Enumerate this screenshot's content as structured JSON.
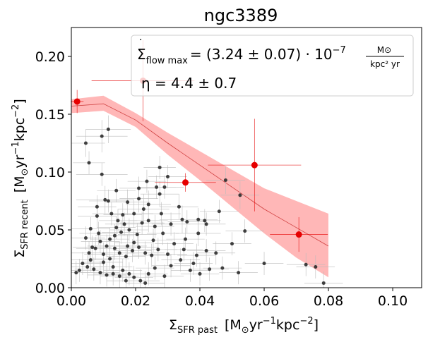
{
  "chart_data": {
    "type": "scatter",
    "title": "ngc3389",
    "xlabel": {
      "main": "Σ",
      "sub": "SFR past",
      "unit": "[M",
      "unit_sub": "⊙",
      "unit_rest": "yr",
      "exp1": "−1",
      "kpc": "kpc",
      "exp2": "−2",
      "close": "]"
    },
    "ylabel": {
      "main": "Σ",
      "sub": "SFR recent",
      "unit": "[M",
      "unit_sub": "⊙",
      "unit_rest": "yr",
      "exp1": "−1",
      "kpc": "kpc",
      "exp2": "−2",
      "close": "]"
    },
    "xlim": [
      0.0,
      0.109
    ],
    "ylim": [
      0.0,
      0.225
    ],
    "xticks": [
      "0.00",
      "0.02",
      "0.04",
      "0.06",
      "0.08",
      "0.10"
    ],
    "xtick_values": [
      0.0,
      0.02,
      0.04,
      0.06,
      0.08,
      0.1
    ],
    "yticks": [
      "0.00",
      "0.05",
      "0.10",
      "0.15",
      "0.20"
    ],
    "ytick_values": [
      0.0,
      0.05,
      0.1,
      0.15,
      0.2
    ],
    "annotations": {
      "flow_lhs": "Σ",
      "flow_dot": "·",
      "flow_sub": "flow max",
      "flow_rhs": "= (3.24 ± 0.07) · 10",
      "flow_exp": "−7",
      "frac_num": "M⊙",
      "frac_den": "kpc² yr",
      "eta": "η = 4.4 ± 0.7"
    },
    "colors": {
      "binned": "#e60000",
      "band": "#ffb3b3",
      "model_line": "#d04040",
      "points": "#222222",
      "errbars": "#bbbbbb"
    },
    "model": {
      "x": [
        0.0,
        0.01,
        0.02,
        0.03,
        0.04,
        0.05,
        0.06,
        0.07,
        0.08
      ],
      "y": [
        0.157,
        0.159,
        0.145,
        0.125,
        0.106,
        0.087,
        0.068,
        0.052,
        0.036
      ],
      "lower": [
        0.151,
        0.153,
        0.139,
        0.115,
        0.093,
        0.07,
        0.047,
        0.026,
        0.009
      ],
      "upper": [
        0.163,
        0.166,
        0.151,
        0.134,
        0.118,
        0.102,
        0.086,
        0.075,
        0.064
      ]
    },
    "binned": [
      {
        "x": 0.0018,
        "y": 0.161,
        "xerr": 0.002,
        "yerr": 0.01
      },
      {
        "x": 0.0223,
        "y": 0.179,
        "xerr": 0.016,
        "yerr": 0.035
      },
      {
        "x": 0.0355,
        "y": 0.091,
        "xerr": 0.0095,
        "yerr": 0.008
      },
      {
        "x": 0.057,
        "y": 0.106,
        "xerr": 0.0145,
        "yerr": 0.04
      },
      {
        "x": 0.0708,
        "y": 0.046,
        "xerr": 0.009,
        "yerr": 0.015
      }
    ],
    "points": [
      [
        0.0045,
        0.125,
        0.006,
        0.012
      ],
      [
        0.0055,
        0.108,
        0.005,
        0.01
      ],
      [
        0.0095,
        0.131,
        0.008,
        0.014
      ],
      [
        0.0115,
        0.137,
        0.007,
        0.012
      ],
      [
        0.0095,
        0.098,
        0.008,
        0.01
      ],
      [
        0.0105,
        0.076,
        0.009,
        0.012
      ],
      [
        0.014,
        0.084,
        0.006,
        0.01
      ],
      [
        0.0175,
        0.074,
        0.007,
        0.011
      ],
      [
        0.0145,
        0.058,
        0.006,
        0.01
      ],
      [
        0.008,
        0.07,
        0.006,
        0.01
      ],
      [
        0.021,
        0.077,
        0.006,
        0.012
      ],
      [
        0.0195,
        0.064,
        0.006,
        0.012
      ],
      [
        0.0225,
        0.068,
        0.008,
        0.013
      ],
      [
        0.024,
        0.072,
        0.007,
        0.012
      ],
      [
        0.0275,
        0.081,
        0.006,
        0.011
      ],
      [
        0.029,
        0.087,
        0.006,
        0.01
      ],
      [
        0.03,
        0.096,
        0.006,
        0.01
      ],
      [
        0.0275,
        0.104,
        0.005,
        0.01
      ],
      [
        0.0345,
        0.059,
        0.007,
        0.012
      ],
      [
        0.036,
        0.057,
        0.006,
        0.01
      ],
      [
        0.0335,
        0.07,
        0.006,
        0.011
      ],
      [
        0.0395,
        0.059,
        0.006,
        0.01
      ],
      [
        0.0415,
        0.058,
        0.005,
        0.01
      ],
      [
        0.042,
        0.055,
        0.006,
        0.01
      ],
      [
        0.0395,
        0.047,
        0.007,
        0.011
      ],
      [
        0.0355,
        0.042,
        0.006,
        0.01
      ],
      [
        0.032,
        0.038,
        0.006,
        0.01
      ],
      [
        0.0285,
        0.047,
        0.005,
        0.01
      ],
      [
        0.026,
        0.053,
        0.006,
        0.01
      ],
      [
        0.024,
        0.058,
        0.006,
        0.01
      ],
      [
        0.022,
        0.056,
        0.007,
        0.01
      ],
      [
        0.0205,
        0.046,
        0.006,
        0.01
      ],
      [
        0.018,
        0.05,
        0.006,
        0.01
      ],
      [
        0.0165,
        0.055,
        0.006,
        0.01
      ],
      [
        0.0155,
        0.048,
        0.006,
        0.01
      ],
      [
        0.014,
        0.052,
        0.006,
        0.01
      ],
      [
        0.0135,
        0.045,
        0.006,
        0.01
      ],
      [
        0.012,
        0.042,
        0.006,
        0.01
      ],
      [
        0.011,
        0.036,
        0.006,
        0.01
      ],
      [
        0.009,
        0.04,
        0.006,
        0.01
      ],
      [
        0.0075,
        0.034,
        0.006,
        0.01
      ],
      [
        0.0055,
        0.03,
        0.006,
        0.01
      ],
      [
        0.0045,
        0.043,
        0.006,
        0.01
      ],
      [
        0.006,
        0.051,
        0.006,
        0.01
      ],
      [
        0.008,
        0.062,
        0.006,
        0.01
      ],
      [
        0.015,
        0.03,
        0.006,
        0.01
      ],
      [
        0.017,
        0.027,
        0.006,
        0.01
      ],
      [
        0.019,
        0.032,
        0.006,
        0.01
      ],
      [
        0.021,
        0.035,
        0.006,
        0.01
      ],
      [
        0.023,
        0.03,
        0.006,
        0.01
      ],
      [
        0.025,
        0.028,
        0.006,
        0.01
      ],
      [
        0.027,
        0.033,
        0.006,
        0.01
      ],
      [
        0.03,
        0.029,
        0.006,
        0.01
      ],
      [
        0.034,
        0.024,
        0.006,
        0.01
      ],
      [
        0.038,
        0.021,
        0.006,
        0.01
      ],
      [
        0.042,
        0.032,
        0.006,
        0.01
      ],
      [
        0.045,
        0.03,
        0.006,
        0.01
      ],
      [
        0.05,
        0.038,
        0.006,
        0.01
      ],
      [
        0.054,
        0.049,
        0.006,
        0.01
      ],
      [
        0.046,
        0.066,
        0.006,
        0.01
      ],
      [
        0.048,
        0.093,
        0.006,
        0.012
      ],
      [
        0.0525,
        0.08,
        0.006,
        0.012
      ],
      [
        0.012,
        0.025,
        0.006,
        0.01
      ],
      [
        0.01,
        0.022,
        0.006,
        0.01
      ],
      [
        0.013,
        0.018,
        0.006,
        0.01
      ],
      [
        0.016,
        0.015,
        0.006,
        0.01
      ],
      [
        0.018,
        0.012,
        0.006,
        0.01
      ],
      [
        0.0195,
        0.009,
        0.006,
        0.01
      ],
      [
        0.0215,
        0.006,
        0.006,
        0.01
      ],
      [
        0.023,
        0.004,
        0.006,
        0.01
      ],
      [
        0.017,
        0.006,
        0.006,
        0.01
      ],
      [
        0.015,
        0.01,
        0.006,
        0.01
      ],
      [
        0.013,
        0.012,
        0.006,
        0.01
      ],
      [
        0.011,
        0.011,
        0.006,
        0.01
      ],
      [
        0.009,
        0.013,
        0.006,
        0.01
      ],
      [
        0.007,
        0.016,
        0.006,
        0.01
      ],
      [
        0.005,
        0.018,
        0.006,
        0.01
      ],
      [
        0.0035,
        0.021,
        0.006,
        0.01
      ],
      [
        0.0025,
        0.015,
        0.006,
        0.01
      ],
      [
        0.0015,
        0.013,
        0.006,
        0.01
      ],
      [
        0.006,
        0.024,
        0.006,
        0.01
      ],
      [
        0.024,
        0.012,
        0.006,
        0.01
      ],
      [
        0.026,
        0.017,
        0.006,
        0.01
      ],
      [
        0.029,
        0.01,
        0.006,
        0.01
      ],
      [
        0.031,
        0.019,
        0.006,
        0.01
      ],
      [
        0.037,
        0.015,
        0.006,
        0.01
      ],
      [
        0.04,
        0.012,
        0.006,
        0.01
      ],
      [
        0.043,
        0.016,
        0.006,
        0.01
      ],
      [
        0.047,
        0.017,
        0.006,
        0.01
      ],
      [
        0.052,
        0.013,
        0.006,
        0.01
      ],
      [
        0.06,
        0.021,
        0.006,
        0.01
      ],
      [
        0.073,
        0.02,
        0.006,
        0.01
      ],
      [
        0.076,
        0.018,
        0.006,
        0.01
      ],
      [
        0.0785,
        0.004,
        0.006,
        0.01
      ],
      [
        0.028,
        0.064,
        0.006,
        0.01
      ],
      [
        0.031,
        0.055,
        0.006,
        0.01
      ],
      [
        0.0255,
        0.041,
        0.006,
        0.01
      ],
      [
        0.0195,
        0.039,
        0.006,
        0.01
      ],
      [
        0.0175,
        0.036,
        0.006,
        0.01
      ],
      [
        0.0135,
        0.034,
        0.006,
        0.01
      ],
      [
        0.01,
        0.029,
        0.006,
        0.01
      ],
      [
        0.0085,
        0.047,
        0.006,
        0.01
      ],
      [
        0.0065,
        0.035,
        0.006,
        0.01
      ],
      [
        0.016,
        0.063,
        0.006,
        0.01
      ],
      [
        0.0125,
        0.064,
        0.006,
        0.01
      ],
      [
        0.021,
        0.086,
        0.006,
        0.01
      ],
      [
        0.0235,
        0.092,
        0.006,
        0.01
      ],
      [
        0.0265,
        0.087,
        0.006,
        0.01
      ],
      [
        0.039,
        0.028,
        0.006,
        0.01
      ],
      [
        0.035,
        0.033,
        0.006,
        0.01
      ],
      [
        0.0115,
        0.075,
        0.006,
        0.01
      ]
    ]
  }
}
